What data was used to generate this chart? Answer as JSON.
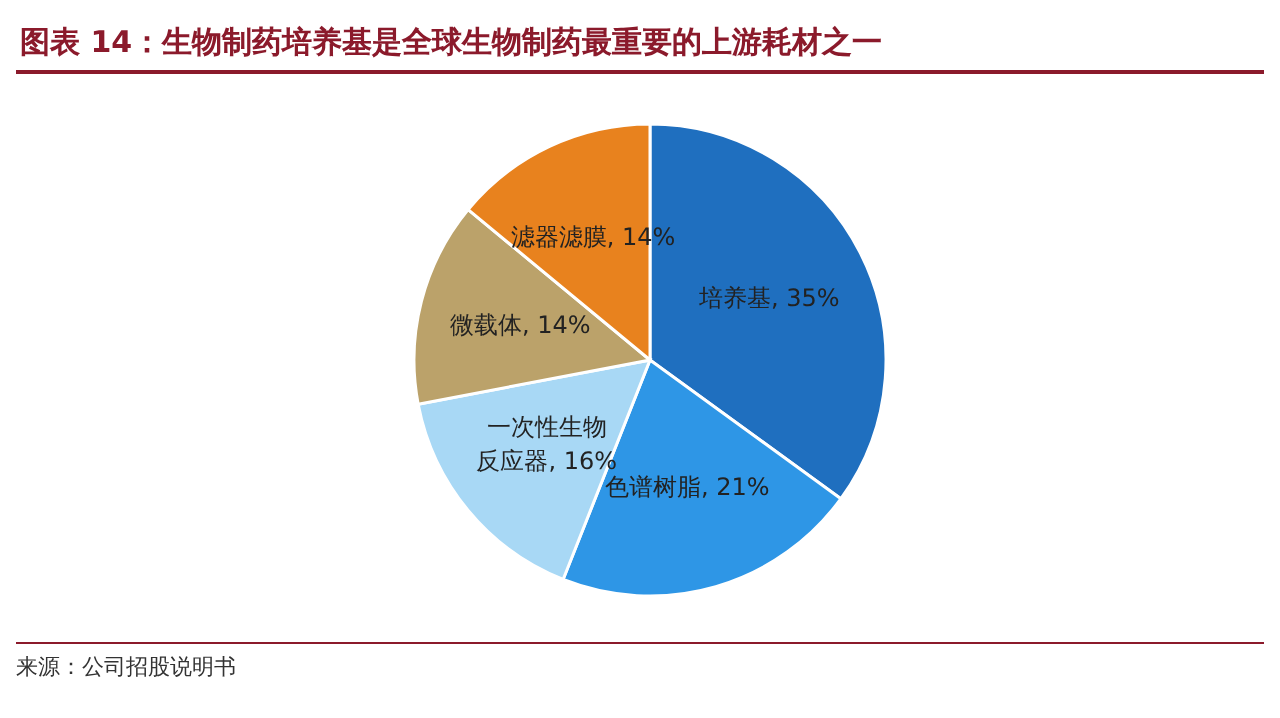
{
  "chart_data": {
    "type": "pie",
    "title": "图表 14：生物制药培养基是全球生物制药最重要的上游耗材之一",
    "categories": [
      "培养基",
      "色谱树脂",
      "一次性生物反应器",
      "微载体",
      "滤器滤膜"
    ],
    "values": [
      35,
      21,
      16,
      14,
      14
    ],
    "colors": [
      "#1f6fbf",
      "#2e96e6",
      "#a8d8f5",
      "#bba26a",
      "#e8821e"
    ],
    "value_labels": [
      ", 35%",
      ", 21%",
      ", 16%",
      ", 14%",
      ", 14%"
    ],
    "legend": false,
    "annotations": [
      "来源：公司招股说明书"
    ]
  }
}
